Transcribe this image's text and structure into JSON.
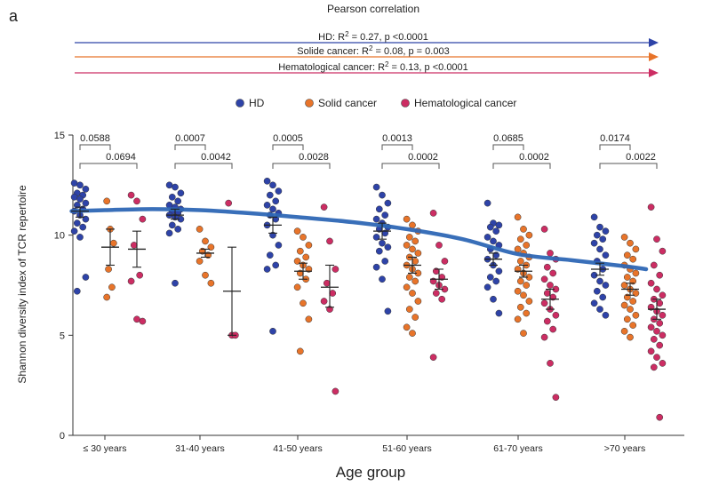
{
  "panel_label": "a",
  "correlation": {
    "title": "Pearson correlation",
    "lines": [
      {
        "name": "HD",
        "label": "HD: R",
        "sup": "2",
        "rest": " = 0.27,  p <0.0001",
        "color": "#2e43a8"
      },
      {
        "name": "Solid cancer",
        "label": "Solide cancer: R",
        "sup": "2",
        "rest": " = 0.08,  p = 0.003",
        "color": "#e8742a"
      },
      {
        "name": "Hematological cancer",
        "label": "Hematological cancer: R",
        "sup": "2",
        "rest": " = 0.13, p <0.0001",
        "color": "#cc2d63"
      }
    ]
  },
  "chart_data": {
    "type": "scatter",
    "title": "",
    "xlabel": "Age group",
    "ylabel": "Shannon diversity index of TCR repertoire",
    "ylim": [
      0,
      15
    ],
    "yticks": [
      0,
      5,
      10,
      15
    ],
    "categories": [
      "≤ 30 years",
      "31-40 years",
      "41-50 years",
      "51-60 years",
      "61-70 years",
      ">70 years"
    ],
    "legend": [
      {
        "name": "HD",
        "color": "#2e43a8"
      },
      {
        "name": "Solid cancer",
        "color": "#e8742a"
      },
      {
        "name": "Hematological cancer",
        "color": "#cc2d63"
      }
    ],
    "series": [
      {
        "name": "HD",
        "color": "#2e43a8",
        "groups": [
          {
            "points": [
              12.6,
              12.5,
              12.3,
              12.1,
              12.0,
              11.9,
              11.8,
              11.6,
              11.5,
              11.3,
              11.2,
              11.0,
              10.8,
              10.6,
              10.4,
              10.2,
              9.9,
              7.9,
              7.2
            ],
            "mean": 11.2,
            "sem": [
              10.9,
              11.4
            ]
          },
          {
            "points": [
              12.5,
              12.4,
              12.1,
              11.9,
              11.7,
              11.5,
              11.4,
              11.3,
              11.2,
              11.1,
              11.0,
              10.9,
              10.8,
              10.5,
              10.3,
              10.1,
              7.6
            ],
            "mean": 11.0,
            "sem": [
              10.8,
              11.3
            ]
          },
          {
            "points": [
              12.7,
              12.5,
              12.2,
              12.0,
              11.7,
              11.5,
              11.3,
              11.1,
              11.0,
              10.8,
              10.5,
              10.0,
              9.5,
              9.0,
              8.5,
              8.3,
              5.2
            ],
            "mean": 10.5,
            "sem": [
              10.1,
              10.9
            ]
          },
          {
            "points": [
              12.4,
              12.0,
              11.6,
              11.3,
              11.0,
              10.8,
              10.6,
              10.4,
              10.3,
              10.1,
              9.9,
              9.6,
              9.4,
              9.2,
              8.7,
              8.4,
              7.8,
              6.2
            ],
            "mean": 10.2,
            "sem": [
              9.8,
              10.6
            ]
          },
          {
            "points": [
              11.6,
              10.6,
              10.5,
              10.4,
              10.2,
              9.9,
              9.7,
              9.5,
              9.3,
              9.0,
              8.8,
              8.5,
              8.2,
              7.9,
              7.7,
              7.4,
              6.8,
              6.1
            ],
            "mean": 8.8,
            "sem": [
              8.5,
              9.1
            ]
          },
          {
            "points": [
              10.9,
              10.4,
              10.2,
              10.0,
              9.8,
              9.6,
              9.3,
              9.0,
              8.7,
              8.3,
              8.0,
              7.7,
              7.5,
              7.2,
              6.9,
              6.6,
              6.3,
              6.0
            ],
            "mean": 8.3,
            "sem": [
              8.0,
              8.6
            ]
          }
        ]
      },
      {
        "name": "Solid cancer",
        "color": "#e8742a",
        "groups": [
          {
            "points": [
              11.7,
              10.3,
              9.6,
              8.3,
              7.4,
              6.9
            ],
            "mean": 9.4,
            "sem": [
              8.5,
              10.3
            ]
          },
          {
            "points": [
              10.3,
              9.7,
              9.4,
              9.2,
              9.0,
              8.7,
              8.0,
              7.6
            ],
            "mean": 9.1,
            "sem": [
              8.9,
              9.3
            ]
          },
          {
            "points": [
              10.2,
              9.9,
              9.5,
              9.2,
              8.9,
              8.7,
              8.5,
              8.3,
              8.1,
              7.8,
              7.4,
              6.6,
              5.8,
              4.2
            ],
            "mean": 8.2,
            "sem": [
              7.8,
              8.6
            ]
          },
          {
            "points": [
              10.8,
              10.5,
              10.2,
              9.9,
              9.7,
              9.5,
              9.3,
              9.1,
              8.9,
              8.7,
              8.5,
              8.3,
              8.1,
              7.9,
              7.7,
              7.4,
              7.1,
              6.7,
              6.3,
              5.9,
              5.4,
              5.1
            ],
            "mean": 8.5,
            "sem": [
              8.1,
              8.9
            ]
          },
          {
            "points": [
              10.9,
              10.3,
              10.0,
              9.8,
              9.5,
              9.3,
              9.1,
              8.9,
              8.7,
              8.5,
              8.3,
              8.1,
              7.9,
              7.7,
              7.5,
              7.2,
              7.0,
              6.7,
              6.4,
              6.1,
              5.8,
              5.1
            ],
            "mean": 8.2,
            "sem": [
              7.9,
              8.5
            ]
          },
          {
            "points": [
              9.9,
              9.6,
              9.3,
              9.0,
              8.8,
              8.5,
              8.3,
              8.1,
              7.9,
              7.7,
              7.5,
              7.3,
              7.1,
              6.9,
              6.7,
              6.5,
              6.3,
              6.0,
              5.8,
              5.5,
              5.2,
              4.9
            ],
            "mean": 7.3,
            "sem": [
              7.0,
              7.6
            ]
          }
        ]
      },
      {
        "name": "Hematological cancer",
        "color": "#cc2d63",
        "groups": [
          {
            "points": [
              12.0,
              11.7,
              10.8,
              9.5,
              8.0,
              7.7,
              5.8,
              5.7
            ],
            "mean": 9.3,
            "sem": [
              8.4,
              10.2
            ]
          },
          {
            "points": [
              11.6,
              5.0,
              5.0
            ],
            "mean": 7.2,
            "sem": [
              5.0,
              9.4
            ]
          },
          {
            "points": [
              11.4,
              9.7,
              8.3,
              7.6,
              7.1,
              6.7,
              6.3,
              2.2
            ],
            "mean": 7.4,
            "sem": [
              6.4,
              8.5
            ]
          },
          {
            "points": [
              11.1,
              9.5,
              8.7,
              8.2,
              7.9,
              7.7,
              7.5,
              7.3,
              7.1,
              6.8,
              3.9
            ],
            "mean": 7.8,
            "sem": [
              7.3,
              8.3
            ]
          },
          {
            "points": [
              10.3,
              9.1,
              8.8,
              8.4,
              8.1,
              7.8,
              7.5,
              7.3,
              7.1,
              6.9,
              6.6,
              6.3,
              6.0,
              5.7,
              5.3,
              4.9,
              3.6,
              1.9
            ],
            "mean": 6.8,
            "sem": [
              6.3,
              7.3
            ]
          },
          {
            "points": [
              11.4,
              9.8,
              9.2,
              8.5,
              8.0,
              7.6,
              7.3,
              7.0,
              6.8,
              6.6,
              6.4,
              6.2,
              6.0,
              5.8,
              5.6,
              5.4,
              5.2,
              5.0,
              4.8,
              4.5,
              4.2,
              3.9,
              3.6,
              3.4,
              0.9
            ],
            "mean": 6.3,
            "sem": [
              5.8,
              6.8
            ]
          }
        ]
      }
    ],
    "trend_line": {
      "name": "HD trend",
      "color": "#2e67b5",
      "x_groups": [
        -0.35,
        0.0,
        0.5,
        1.0,
        1.5,
        2.0,
        2.5,
        3.0,
        3.5,
        4.0,
        4.5,
        5.0,
        5.2
      ],
      "y": [
        11.2,
        11.25,
        11.3,
        11.25,
        11.1,
        10.9,
        10.65,
        10.3,
        9.8,
        9.05,
        8.75,
        8.45,
        8.3
      ]
    },
    "pvalues": [
      {
        "group": 0,
        "top": "0.0588",
        "bottom": "0.0694"
      },
      {
        "group": 1,
        "top": "0.0007",
        "bottom": "0.0042"
      },
      {
        "group": 2,
        "top": "0.0005",
        "bottom": "0.0028"
      },
      {
        "group": 3,
        "top": "0.0013",
        "bottom": "0.0002"
      },
      {
        "group": 4,
        "top": "0.0685",
        "bottom": "0.0002"
      },
      {
        "group": 5,
        "top": "0.0174",
        "bottom": "0.0022"
      }
    ]
  }
}
